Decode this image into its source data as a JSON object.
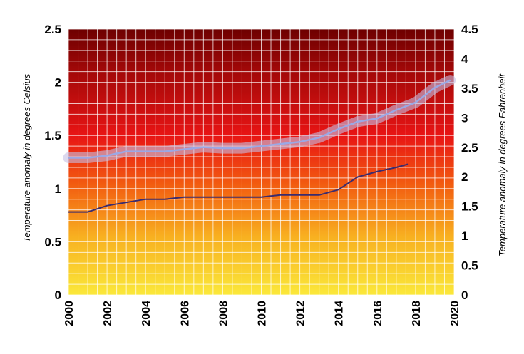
{
  "chart_data": {
    "type": "line",
    "title": "",
    "xlabel": "",
    "ylabel_left": "Temperature anomaly in degrees Celsius",
    "ylabel_right": "Temperature anomaly in degrees Fahrenheit",
    "xlim": [
      2000,
      2020
    ],
    "ylim": [
      0,
      2.5
    ],
    "ylim_right": [
      0,
      4.5
    ],
    "x_ticks": [
      2000,
      2002,
      2004,
      2006,
      2008,
      2010,
      2012,
      2014,
      2016,
      2018,
      2020
    ],
    "y_ticks_left": [
      "0",
      "0.5",
      "1",
      "1.5",
      "2",
      "2.5"
    ],
    "y_ticks_right": [
      "0",
      "0.5",
      "1",
      "1.5",
      "2",
      "2.5",
      "3",
      "3.5",
      "4",
      "4.5"
    ],
    "grid": true,
    "background": "vertical gradient from yellow (bottom) through red to dark red (top)",
    "colors": {
      "bg_top": "#6e0000",
      "bg_mid": "#e81414",
      "bg_low": "#f25a10",
      "bg_bottom": "#fbe83a",
      "series_upper": "#9aa8e6",
      "series_upper_band": "#c4c0e4",
      "series_lower": "#3a2c70"
    },
    "series": [
      {
        "style": "thin line with wide translucent band",
        "x": [
          2000,
          2001,
          2002,
          2003,
          2004,
          2005,
          2006,
          2007,
          2008,
          2009,
          2010,
          2011,
          2012,
          2013,
          2014,
          2015,
          2016,
          2017,
          2018,
          2019,
          2019.8
        ],
        "y": [
          1.29,
          1.29,
          1.31,
          1.35,
          1.35,
          1.35,
          1.37,
          1.39,
          1.38,
          1.38,
          1.4,
          1.42,
          1.44,
          1.48,
          1.56,
          1.63,
          1.66,
          1.74,
          1.81,
          1.95,
          2.02
        ]
      },
      {
        "style": "thin dark line",
        "x": [
          2000,
          2001,
          2002,
          2003,
          2004,
          2005,
          2006,
          2007,
          2008,
          2009,
          2010,
          2011,
          2012,
          2013,
          2014,
          2015,
          2016,
          2017,
          2017.6
        ],
        "y": [
          0.78,
          0.78,
          0.84,
          0.87,
          0.9,
          0.9,
          0.92,
          0.92,
          0.92,
          0.92,
          0.92,
          0.94,
          0.94,
          0.94,
          0.99,
          1.11,
          1.16,
          1.2,
          1.23
        ]
      }
    ]
  }
}
